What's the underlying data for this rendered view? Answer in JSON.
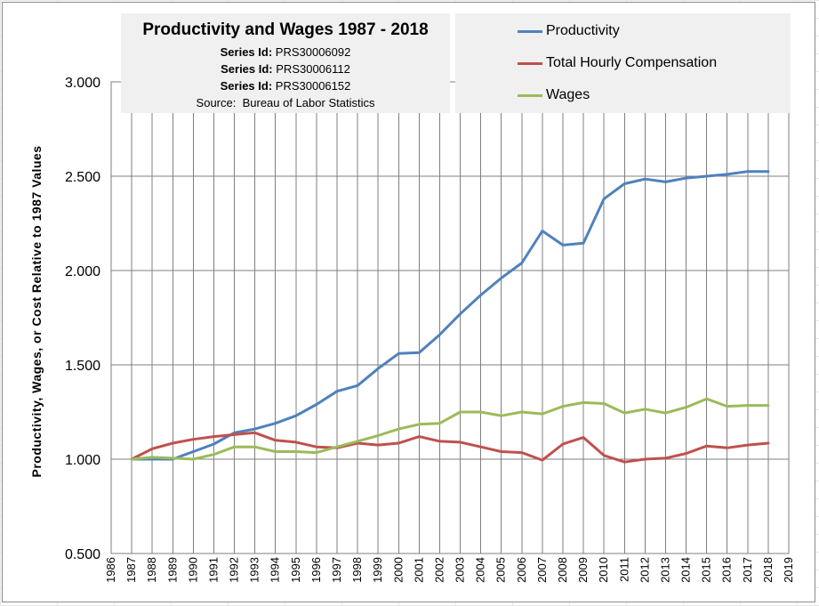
{
  "chart_data": {
    "type": "line",
    "title": "Productivity and Wages 1987 - 2018",
    "subtitle_lines": [
      {
        "label": "Series Id:",
        "value": "PRS30006092"
      },
      {
        "label": "Series Id:",
        "value": "PRS30006112"
      },
      {
        "label": "Series Id:",
        "value": "PRS30006152"
      }
    ],
    "source_label": "Source:",
    "source": "Bureau of Labor Statistics",
    "ylabel": "Productivity, Wages, or Cost Relative to 1987 Values",
    "xlabel": "",
    "xlim": [
      1986,
      2019
    ],
    "ylim": [
      0.5,
      3.0
    ],
    "y_ticks": [
      "0.500",
      "1.000",
      "1.500",
      "2.000",
      "2.500",
      "3.000"
    ],
    "y_tick_values": [
      0.5,
      1.0,
      1.5,
      2.0,
      2.5,
      3.0
    ],
    "x_ticks": [
      "1986",
      "1987",
      "1988",
      "1989",
      "1990",
      "1991",
      "1992",
      "1993",
      "1994",
      "1995",
      "1996",
      "1997",
      "1998",
      "1999",
      "2000",
      "2001",
      "2002",
      "2003",
      "2004",
      "2005",
      "2006",
      "2007",
      "2008",
      "2009",
      "2010",
      "2011",
      "2012",
      "2013",
      "2014",
      "2015",
      "2016",
      "2017",
      "2018",
      "2019"
    ],
    "grid": true,
    "legend_position": "top-right",
    "x": [
      1987,
      1988,
      1989,
      1990,
      1991,
      1992,
      1993,
      1994,
      1995,
      1996,
      1997,
      1998,
      1999,
      2000,
      2001,
      2002,
      2003,
      2004,
      2005,
      2006,
      2007,
      2008,
      2009,
      2010,
      2011,
      2012,
      2013,
      2014,
      2015,
      2016,
      2017,
      2018
    ],
    "series": [
      {
        "name": "Productivity",
        "color": "#4f81bd",
        "values": [
          1.0,
          1.0,
          1.0,
          1.04,
          1.08,
          1.14,
          1.16,
          1.19,
          1.23,
          1.29,
          1.36,
          1.39,
          1.48,
          1.56,
          1.565,
          1.66,
          1.77,
          1.87,
          1.96,
          2.04,
          2.21,
          2.135,
          2.145,
          2.38,
          2.46,
          2.485,
          2.47,
          2.49,
          2.5,
          2.51,
          2.525,
          2.525
        ]
      },
      {
        "name": "Total Hourly Compensation",
        "color": "#c0504d",
        "values": [
          1.0,
          1.055,
          1.085,
          1.105,
          1.12,
          1.13,
          1.14,
          1.1,
          1.09,
          1.065,
          1.06,
          1.085,
          1.075,
          1.085,
          1.12,
          1.095,
          1.09,
          1.065,
          1.04,
          1.035,
          0.995,
          1.08,
          1.115,
          1.02,
          0.985,
          1.0,
          1.005,
          1.03,
          1.07,
          1.06,
          1.075,
          1.085
        ]
      },
      {
        "name": "Wages",
        "color": "#9bbb59",
        "values": [
          1.0,
          1.01,
          1.005,
          1.0,
          1.025,
          1.065,
          1.065,
          1.04,
          1.04,
          1.035,
          1.065,
          1.095,
          1.125,
          1.16,
          1.185,
          1.19,
          1.25,
          1.25,
          1.23,
          1.25,
          1.24,
          1.28,
          1.3,
          1.295,
          1.245,
          1.265,
          1.245,
          1.275,
          1.32,
          1.28,
          1.285,
          1.285
        ]
      }
    ],
    "colors": {
      "grid": "#7f7f7f",
      "panel": "#f0f0f0"
    }
  }
}
